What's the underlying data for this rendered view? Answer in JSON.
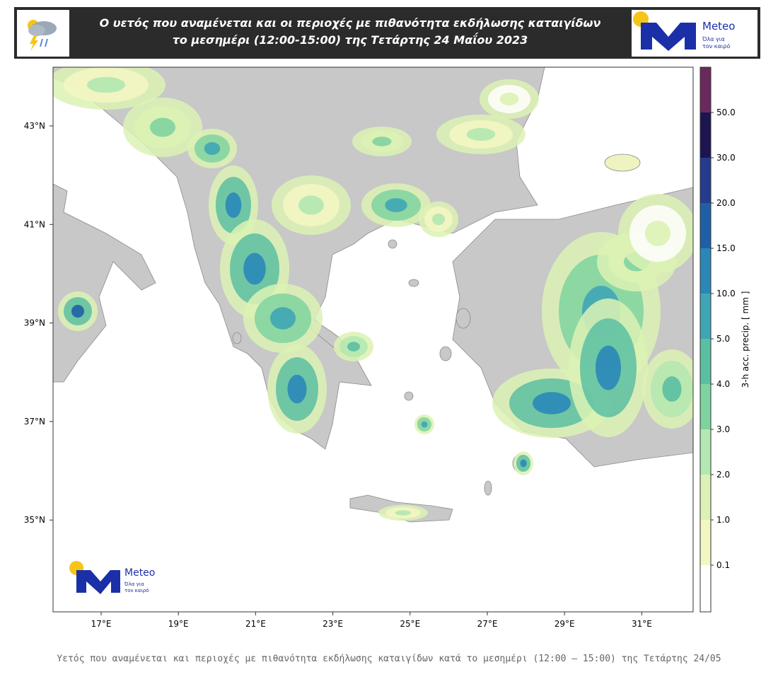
{
  "header": {
    "title_line1": "Ο υετός που αναμένεται και οι περιοχές με πιθανότητα εκδήλωσης καταιγίδων",
    "title_line2": "το μεσημέρι (12:00-15:00) της Τετάρτης 24 Μαΐου 2023",
    "logo_name": "Meteo",
    "logo_tagline": [
      "Όλα για",
      "τον καιρό"
    ]
  },
  "map": {
    "lon_ticks": [
      "17°E",
      "19°E",
      "21°E",
      "23°E",
      "25°E",
      "27°E",
      "29°E",
      "31°E"
    ],
    "lat_ticks": [
      "43°N",
      "41°N",
      "39°N",
      "37°N",
      "35°N"
    ],
    "watermark": {
      "name": "Meteo",
      "tagline": [
        "Όλα για",
        "τον καιρό"
      ]
    }
  },
  "colorbar": {
    "label": "3-h acc. precip. [ mm ]",
    "ticks": [
      "0.1",
      "1.0",
      "2.0",
      "3.0",
      "4.0",
      "5.0",
      "10.0",
      "15.0",
      "20.0",
      "30.0",
      "50.0"
    ],
    "colors": [
      "#ffffff",
      "#f3f7c4",
      "#dcf2b4",
      "#b3e8b0",
      "#7fd3a0",
      "#5bbfa2",
      "#3fa6b5",
      "#2a87b8",
      "#1f5fa5",
      "#243c8e",
      "#1c1550",
      "#6a2a5e"
    ]
  },
  "caption": "Υετός που αναμένεται και περιοχές με πιθανότητα εκδήλωσης καταιγίδων κατά το μεσημέρι (12:00 — 15:00) της Τετάρτης 24/05"
}
